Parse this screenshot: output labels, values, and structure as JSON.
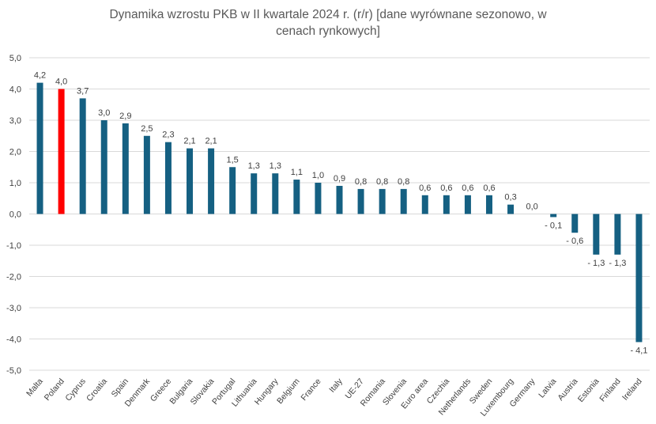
{
  "chart_data": {
    "type": "bar",
    "title": "Dynamika wzrostu PKB w II kwartale 2024 r. (r/r) [dane wyrównane sezonowo, w cenach rynkowych]",
    "title_lines": [
      "Dynamika wzrostu PKB w II kwartale 2024 r. (r/r) [dane wyrównane sezonowo, w",
      "cenach rynkowych]"
    ],
    "xlabel": "",
    "ylabel": "",
    "ylim": [
      -5,
      5
    ],
    "yticks": [
      5,
      4,
      3,
      2,
      1,
      0,
      -1,
      -2,
      -3,
      -4,
      -5
    ],
    "ytick_labels": [
      "5,0",
      "4,0",
      "3,0",
      "2,0",
      "1,0",
      "0,0",
      "-1,0",
      "-2,0",
      "-3,0",
      "-4,0",
      "-5,0"
    ],
    "grid": true,
    "categories": [
      "Malta",
      "Poland",
      "Cyprus",
      "Croatia",
      "Spain",
      "Denmark",
      "Greece",
      "Bulgaria",
      "Slovakia",
      "Portugal",
      "Lithuania",
      "Hungary",
      "Belgium",
      "France",
      "Italy",
      "UE-27",
      "Romania",
      "Slovenia",
      "Euro area",
      "Czechia",
      "Netherlands",
      "Sweden",
      "Luxembourg",
      "Germany",
      "Latvia",
      "Austria",
      "Estonia",
      "Finland",
      "Ireland"
    ],
    "values": [
      4.2,
      4.0,
      3.7,
      3.0,
      2.9,
      2.5,
      2.3,
      2.1,
      2.1,
      1.5,
      1.3,
      1.3,
      1.1,
      1.0,
      0.9,
      0.8,
      0.8,
      0.8,
      0.6,
      0.6,
      0.6,
      0.6,
      0.3,
      0.0,
      -0.1,
      -0.6,
      -1.3,
      -1.3,
      -4.1
    ],
    "data_labels": [
      "4,2",
      "4,0",
      "3,7",
      "3,0",
      "2,9",
      "2,5",
      "2,3",
      "2,1",
      "2,1",
      "1,5",
      "1,3",
      "1,3",
      "1,1",
      "1,0",
      "0,9",
      "0,8",
      "0,8",
      "0,8",
      "0,6",
      "0,6",
      "0,6",
      "0,6",
      "0,3",
      "0,0",
      "- 0,1",
      "- 0,6",
      "- 1,3",
      "- 1,3",
      "- 4,1"
    ],
    "colors": {
      "default": "#156082",
      "highlight": "#FF0000",
      "highlight_category": "Poland",
      "grid": "#D9D9D9"
    }
  }
}
